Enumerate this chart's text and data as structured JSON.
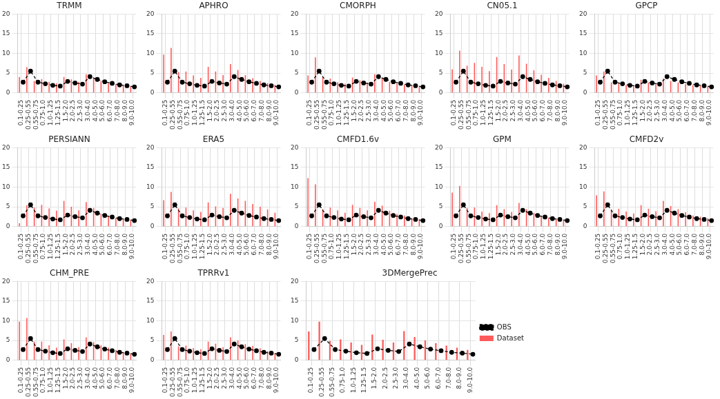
{
  "chart_data": [
    {
      "type": "bar",
      "title": "TRMM",
      "categories": [
        "0.1-0.25",
        "0.25-0.55",
        "0.55-0.75",
        "0.75-1.0",
        "1.0-1.25",
        "1.25-1.5",
        "1.5-2.0",
        "2.0-2.5",
        "2.5-3.0",
        "3.0-4.0",
        "4.0-5.0",
        "5.0-6.0",
        "6.0-7.0",
        "7.0-8.0",
        "8.0-9.0",
        "9.0-10.0"
      ],
      "ylim": [
        0,
        20
      ],
      "yticks": [
        0,
        5,
        10,
        15,
        20
      ],
      "grid": true,
      "series": [
        {
          "color": "#ff5a5a",
          "values": [
            4.0,
            6.5,
            3.0,
            3.5,
            2.8,
            2.4,
            4.0,
            3.4,
            2.8,
            4.7,
            3.7,
            3.0,
            2.5,
            2.2,
            1.9,
            1.6
          ]
        },
        {
          "type": "line",
          "color": "#000000",
          "marker": "circle",
          "line_style": "dashed",
          "values": [
            2.7,
            5.5,
            2.7,
            2.3,
            1.9,
            1.7,
            2.9,
            2.5,
            2.2,
            4.1,
            3.4,
            2.8,
            2.4,
            2.0,
            1.8,
            1.5
          ]
        }
      ]
    },
    {
      "type": "bar",
      "title": "APHRO",
      "categories": [
        "0.1-0.25",
        "0.25-0.55",
        "0.55-0.75",
        "0.75-1.0",
        "1.0-1.25",
        "1.25-1.5",
        "1.5-2.0",
        "2.0-2.5",
        "2.5-3.0",
        "3.0-4.0",
        "4.0-5.0",
        "5.0-6.0",
        "6.0-7.0",
        "7.0-8.0",
        "8.0-9.0",
        "9.0-10.0"
      ],
      "ylim": [
        0,
        20
      ],
      "yticks": [
        0,
        5,
        10,
        15,
        20
      ],
      "grid": true,
      "series": [
        {
          "color": "#ff5a5a",
          "values": [
            9.7,
            11.4,
            5.3,
            5.4,
            4.4,
            3.8,
            6.6,
            5.4,
            4.5,
            7.3,
            5.8,
            4.5,
            3.7,
            3.0,
            2.5,
            2.0
          ]
        },
        {
          "type": "line",
          "color": "#000000",
          "marker": "circle",
          "line_style": "dashed",
          "values": [
            2.7,
            5.5,
            2.7,
            2.3,
            1.9,
            1.7,
            2.9,
            2.5,
            2.2,
            4.1,
            3.4,
            2.8,
            2.4,
            2.0,
            1.8,
            1.5
          ]
        }
      ]
    },
    {
      "type": "bar",
      "title": "CMORPH",
      "categories": [
        "0.1-0.25",
        "0.25-0.55",
        "0.55-0.75",
        "0.75-1.0",
        "1.0-1.25",
        "1.25-1.5",
        "1.5-2.0",
        "2.0-2.5",
        "2.5-3.0",
        "3.0-4.0",
        "4.0-5.0",
        "5.0-6.0",
        "6.0-7.0",
        "7.0-8.0",
        "8.0-9.0",
        "9.0-10.0"
      ],
      "ylim": [
        0,
        20
      ],
      "yticks": [
        0,
        5,
        10,
        15,
        20
      ],
      "grid": true,
      "series": [
        {
          "color": "#ff5a5a",
          "values": [
            4.4,
            9.0,
            4.1,
            3.6,
            2.7,
            2.3,
            3.9,
            3.2,
            2.6,
            4.7,
            3.6,
            2.8,
            2.4,
            2.1,
            1.8,
            1.6
          ]
        },
        {
          "type": "line",
          "color": "#000000",
          "marker": "circle",
          "line_style": "dashed",
          "values": [
            2.7,
            5.5,
            2.7,
            2.3,
            1.9,
            1.7,
            2.9,
            2.5,
            2.2,
            4.1,
            3.4,
            2.8,
            2.4,
            2.0,
            1.8,
            1.5
          ]
        }
      ]
    },
    {
      "type": "bar",
      "title": "CN05.1",
      "categories": [
        "0.1-0.25",
        "0.25-0.55",
        "0.55-0.75",
        "0.75-1.0",
        "1.0-1.25",
        "1.25-1.5",
        "1.5-2.0",
        "2.0-2.5",
        "2.5-3.0",
        "3.0-4.0",
        "4.0-5.0",
        "5.0-6.0",
        "6.0-7.0",
        "7.0-8.0",
        "8.0-9.0",
        "9.0-10.0"
      ],
      "ylim": [
        0,
        20
      ],
      "yticks": [
        0,
        5,
        10,
        15,
        20
      ],
      "grid": true,
      "series": [
        {
          "color": "#ff5a5a",
          "values": [
            6.0,
            10.7,
            6.9,
            7.6,
            6.6,
            5.5,
            9.1,
            7.3,
            5.9,
            9.5,
            7.4,
            5.7,
            4.6,
            3.8,
            3.0,
            2.3
          ]
        },
        {
          "type": "line",
          "color": "#000000",
          "marker": "circle",
          "line_style": "dashed",
          "values": [
            2.7,
            5.5,
            2.7,
            2.3,
            1.9,
            1.7,
            2.9,
            2.5,
            2.2,
            4.1,
            3.4,
            2.8,
            2.4,
            2.0,
            1.8,
            1.5
          ]
        }
      ]
    },
    {
      "type": "bar",
      "title": "GPCP",
      "categories": [
        "0.1-0.25",
        "0.25-0.55",
        "0.55-0.75",
        "0.75-1.0",
        "1.0-1.25",
        "1.25-1.5",
        "1.5-2.0",
        "2.0-2.5",
        "2.5-3.0",
        "3.0-4.0",
        "4.0-5.0",
        "5.0-6.0",
        "6.0-7.0",
        "7.0-8.0",
        "8.0-9.0",
        "9.0-10.0"
      ],
      "ylim": [
        0,
        20
      ],
      "yticks": [
        0,
        5,
        10,
        15,
        20
      ],
      "grid": true,
      "series": [
        {
          "color": "#ff5a5a",
          "values": [
            4.4,
            5.4,
            2.6,
            2.4,
            2.0,
            1.6,
            3.3,
            2.6,
            2.2,
            3.6,
            3.0,
            2.6,
            2.2,
            2.0,
            1.8,
            1.6
          ]
        },
        {
          "type": "line",
          "color": "#000000",
          "marker": "circle",
          "line_style": "dashed",
          "values": [
            2.7,
            5.5,
            2.7,
            2.3,
            1.9,
            1.7,
            2.9,
            2.5,
            2.2,
            4.1,
            3.4,
            2.8,
            2.4,
            2.0,
            1.8,
            1.5
          ]
        }
      ]
    },
    {
      "type": "bar",
      "title": "PERSIANN",
      "categories": [
        "0.1-0.25",
        "0.25-0.55",
        "0.55-0.75",
        "0.75-1.0",
        "1.0-1.25",
        "1.25-1.5",
        "1.5-2.0",
        "2.0-2.5",
        "2.5-3.0",
        "3.0-4.0",
        "4.0-5.0",
        "5.0-6.0",
        "6.0-7.0",
        "7.0-8.0",
        "8.0-9.0",
        "9.0-10.0"
      ],
      "ylim": [
        0,
        20
      ],
      "yticks": [
        0,
        5,
        10,
        15,
        20
      ],
      "grid": true,
      "series": [
        {
          "color": "#ff5a5a",
          "values": [
            0.8,
            5.4,
            4.8,
            5.5,
            4.6,
            4.0,
            6.5,
            5.0,
            4.1,
            6.2,
            4.7,
            3.2,
            2.6,
            2.2,
            1.9,
            1.6
          ]
        },
        {
          "type": "line",
          "color": "#000000",
          "marker": "circle",
          "line_style": "dashed",
          "values": [
            2.7,
            5.5,
            2.7,
            2.3,
            1.9,
            1.7,
            2.9,
            2.5,
            2.2,
            4.1,
            3.4,
            2.8,
            2.4,
            2.0,
            1.8,
            1.5
          ]
        }
      ]
    },
    {
      "type": "bar",
      "title": "ERA5",
      "categories": [
        "0.1-0.25",
        "0.25-0.55",
        "0.55-0.75",
        "0.75-1.0",
        "1.0-1.25",
        "1.25-1.5",
        "1.5-2.0",
        "2.0-2.5",
        "2.5-3.0",
        "3.0-4.0",
        "4.0-5.0",
        "5.0-6.0",
        "6.0-7.0",
        "7.0-8.0",
        "8.0-9.0",
        "9.0-10.0"
      ],
      "ylim": [
        0,
        20
      ],
      "yticks": [
        0,
        5,
        10,
        15,
        20
      ],
      "grid": true,
      "series": [
        {
          "color": "#ff5a5a",
          "values": [
            6.7,
            8.8,
            4.6,
            4.8,
            4.1,
            3.7,
            6.1,
            5.1,
            4.7,
            8.3,
            7.1,
            6.5,
            5.7,
            5.0,
            4.3,
            3.5
          ]
        },
        {
          "type": "line",
          "color": "#000000",
          "marker": "circle",
          "line_style": "dashed",
          "values": [
            2.7,
            5.5,
            2.7,
            2.3,
            1.9,
            1.7,
            2.9,
            2.5,
            2.2,
            4.1,
            3.4,
            2.8,
            2.4,
            2.0,
            1.8,
            1.5
          ]
        }
      ]
    },
    {
      "type": "bar",
      "title": "CMFD1.6v",
      "categories": [
        "0.1-0.25",
        "0.25-0.55",
        "0.55-0.75",
        "0.75-1.0",
        "1.0-1.25",
        "1.25-1.5",
        "1.5-2.0",
        "2.0-2.5",
        "2.5-3.0",
        "3.0-4.0",
        "4.0-5.0",
        "5.0-6.0",
        "6.0-7.0",
        "7.0-8.0",
        "8.0-9.0",
        "9.0-10.0"
      ],
      "ylim": [
        0,
        20
      ],
      "yticks": [
        0,
        5,
        10,
        15,
        20
      ],
      "grid": true,
      "series": [
        {
          "color": "#ff5a5a",
          "values": [
            12.3,
            10.7,
            4.4,
            4.8,
            4.1,
            3.5,
            5.5,
            4.7,
            4.1,
            6.3,
            5.3,
            4.0,
            3.2,
            2.8,
            2.1,
            1.8
          ]
        },
        {
          "type": "line",
          "color": "#000000",
          "marker": "circle",
          "line_style": "dashed",
          "values": [
            2.7,
            5.5,
            2.7,
            2.3,
            1.9,
            1.7,
            2.9,
            2.5,
            2.2,
            4.1,
            3.4,
            2.8,
            2.4,
            2.0,
            1.8,
            1.5
          ]
        }
      ]
    },
    {
      "type": "bar",
      "title": "GPM",
      "categories": [
        "0.1-0.25",
        "0.25-0.55",
        "0.55-0.75",
        "0.75-1.0",
        "1.0-1.25",
        "1.25-1.5",
        "1.5-2.0",
        "2.0-2.5",
        "2.5-3.0",
        "3.0-4.0",
        "4.0-5.0",
        "5.0-6.0",
        "6.0-7.0",
        "7.0-8.0",
        "8.0-9.0",
        "9.0-10.0"
      ],
      "ylim": [
        0,
        20
      ],
      "yticks": [
        0,
        5,
        10,
        15,
        20
      ],
      "grid": true,
      "series": [
        {
          "color": "#ff5a5a",
          "values": [
            8.6,
            10.3,
            4.7,
            4.8,
            3.8,
            3.4,
            5.4,
            4.4,
            3.7,
            6.0,
            4.4,
            3.5,
            2.7,
            2.2,
            1.9,
            1.6
          ]
        },
        {
          "type": "line",
          "color": "#000000",
          "marker": "circle",
          "line_style": "dashed",
          "values": [
            2.7,
            5.5,
            2.7,
            2.3,
            1.9,
            1.7,
            2.9,
            2.5,
            2.2,
            4.1,
            3.4,
            2.8,
            2.4,
            2.0,
            1.8,
            1.5
          ]
        }
      ]
    },
    {
      "type": "bar",
      "title": "CMFD2v",
      "categories": [
        "0.1-0.25",
        "0.25-0.55",
        "0.55-0.75",
        "0.75-1.0",
        "1.0-1.25",
        "1.25-1.5",
        "1.5-2.0",
        "2.0-2.5",
        "2.5-3.0",
        "3.0-4.0",
        "4.0-5.0",
        "5.0-6.0",
        "6.0-7.0",
        "7.0-8.0",
        "8.0-9.0",
        "9.0-10.0"
      ],
      "ylim": [
        0,
        20
      ],
      "yticks": [
        0,
        5,
        10,
        15,
        20
      ],
      "grid": true,
      "series": [
        {
          "color": "#ff5a5a",
          "values": [
            7.9,
            8.9,
            4.3,
            4.5,
            3.8,
            3.3,
            5.4,
            4.5,
            3.9,
            6.5,
            5.2,
            4.4,
            3.6,
            2.8,
            2.5,
            2.1
          ]
        },
        {
          "type": "line",
          "color": "#000000",
          "marker": "circle",
          "line_style": "dashed",
          "values": [
            2.7,
            5.5,
            2.7,
            2.3,
            1.9,
            1.7,
            2.9,
            2.5,
            2.2,
            4.1,
            3.4,
            2.8,
            2.4,
            2.0,
            1.8,
            1.5
          ]
        }
      ]
    },
    {
      "type": "bar",
      "title": "CHM_PRE",
      "categories": [
        "0.1-0.25",
        "0.25-0.55",
        "0.55-0.75",
        "0.75-1.0",
        "1.0-1.25",
        "1.25-1.5",
        "1.5-2.0",
        "2.0-2.5",
        "2.5-3.0",
        "3.0-4.0",
        "4.0-5.0",
        "5.0-6.0",
        "6.0-7.0",
        "7.0-8.0",
        "8.0-9.0",
        "9.0-10.0"
      ],
      "ylim": [
        0,
        20
      ],
      "yticks": [
        0,
        5,
        10,
        15,
        20
      ],
      "grid": true,
      "series": [
        {
          "color": "#ff5a5a",
          "values": [
            9.8,
            10.7,
            4.7,
            4.7,
            3.8,
            3.2,
            5.3,
            4.3,
            3.3,
            5.8,
            4.6,
            3.8,
            3.2,
            2.6,
            2.0,
            1.6
          ]
        },
        {
          "type": "line",
          "color": "#000000",
          "marker": "circle",
          "line_style": "dashed",
          "values": [
            2.7,
            5.5,
            2.7,
            2.3,
            1.9,
            1.7,
            2.9,
            2.5,
            2.2,
            4.1,
            3.4,
            2.8,
            2.4,
            2.0,
            1.8,
            1.5
          ]
        }
      ]
    },
    {
      "type": "bar",
      "title": "TPRRv1",
      "categories": [
        "0.1-0.25",
        "0.25-0.55",
        "0.55-0.75",
        "0.75-1.0",
        "1.0-1.25",
        "1.25-1.5",
        "1.5-2.0",
        "2.0-2.5",
        "2.5-3.0",
        "3.0-4.0",
        "4.0-5.0",
        "5.0-6.0",
        "6.0-7.0",
        "7.0-8.0",
        "8.0-9.0",
        "9.0-10.0"
      ],
      "ylim": [
        0,
        20
      ],
      "yticks": [
        0,
        5,
        10,
        15,
        20
      ],
      "grid": true,
      "series": [
        {
          "color": "#ff5a5a",
          "values": [
            6.4,
            7.3,
            3.5,
            3.7,
            3.1,
            2.8,
            4.7,
            4.2,
            3.3,
            5.8,
            5.0,
            4.1,
            3.6,
            3.0,
            2.3,
            1.8
          ]
        },
        {
          "type": "line",
          "color": "#000000",
          "marker": "circle",
          "line_style": "dashed",
          "values": [
            2.7,
            5.5,
            2.7,
            2.3,
            1.9,
            1.7,
            2.9,
            2.5,
            2.2,
            4.1,
            3.4,
            2.8,
            2.4,
            2.0,
            1.8,
            1.5
          ]
        }
      ]
    },
    {
      "type": "bar",
      "title": "3DMergePrec",
      "categories": [
        "0.1-0.25",
        "0.25-0.55",
        "0.55-0.75",
        "0.75-1.0",
        "1.0-1.25",
        "1.25-1.5",
        "1.5-2.0",
        "2.0-2.5",
        "2.5-3.0",
        "3.0-4.0",
        "4.0-5.0",
        "5.0-6.0",
        "6.0-7.0",
        "7.0-8.0",
        "8.0-9.0",
        "9.0-10.0"
      ],
      "ylim": [
        0,
        20
      ],
      "yticks": [
        0,
        5,
        10,
        15,
        20
      ],
      "grid": true,
      "legend": "right",
      "series": [
        {
          "name": "Dataset",
          "color": "#ff5a5a",
          "values": [
            7.3,
            9.8,
            4.9,
            5.3,
            4.5,
            3.9,
            6.5,
            5.2,
            4.5,
            7.4,
            5.9,
            5.0,
            4.3,
            3.7,
            3.2,
            2.6
          ]
        },
        {
          "type": "line",
          "name": "OBS",
          "color": "#000000",
          "marker": "circle",
          "line_style": "dashed",
          "values": [
            2.7,
            5.5,
            2.7,
            2.3,
            1.9,
            1.7,
            2.9,
            2.5,
            2.2,
            4.1,
            3.4,
            2.8,
            2.4,
            2.0,
            1.8,
            1.5
          ]
        }
      ]
    }
  ]
}
